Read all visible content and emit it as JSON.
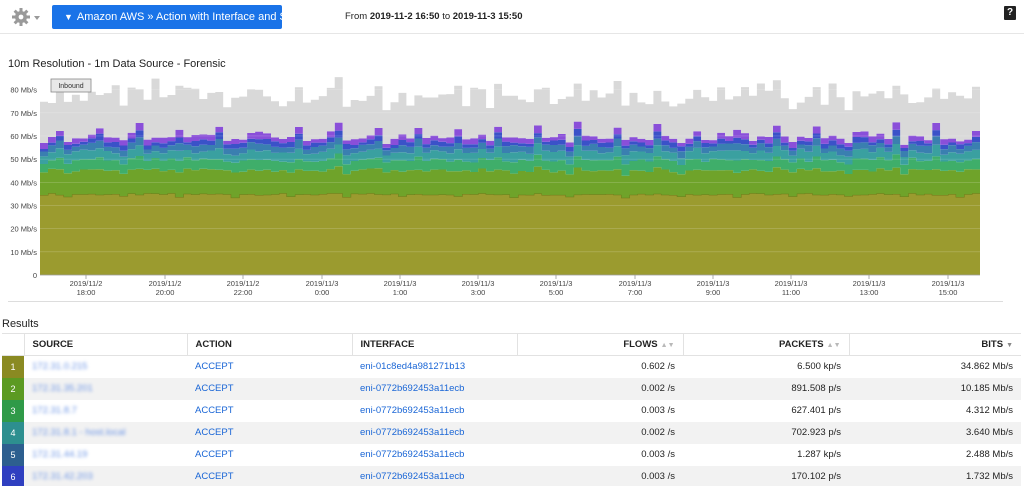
{
  "toolbar": {
    "dropdown_label": "Amazon AWS » Action with Interface and Src",
    "range_prefix": "From",
    "range_from": "2019-11-2 16:50",
    "range_sep": "to",
    "range_to": "2019-11-3 15:50",
    "help_label": "?"
  },
  "chart": {
    "title": "10m Resolution - 1m Data Source - Forensic",
    "tooltip": "Inbound",
    "y_ticks": [
      "0",
      "10 Mb/s",
      "20 Mb/s",
      "30 Mb/s",
      "40 Mb/s",
      "50 Mb/s",
      "60 Mb/s",
      "70 Mb/s",
      "80 Mb/s"
    ],
    "x_ticks": [
      [
        "2019/11/2",
        "18:00"
      ],
      [
        "2019/11/2",
        "20:00"
      ],
      [
        "2019/11/2",
        "22:00"
      ],
      [
        "2019/11/3",
        "0:00"
      ],
      [
        "2019/11/3",
        "1:00"
      ],
      [
        "2019/11/3",
        "3:00"
      ],
      [
        "2019/11/3",
        "5:00"
      ],
      [
        "2019/11/3",
        "7:00"
      ],
      [
        "2019/11/3",
        "9:00"
      ],
      [
        "2019/11/3",
        "11:00"
      ],
      [
        "2019/11/3",
        "13:00"
      ],
      [
        "2019/11/3",
        "15:00"
      ]
    ]
  },
  "chart_data": {
    "type": "area",
    "stacked": true,
    "title": "10m Resolution - 1m Data Source - Forensic",
    "ylabel": "",
    "ylim": [
      0,
      85
    ],
    "y_unit": "Mb/s",
    "legend": "none",
    "series": [
      {
        "rank": 1,
        "color": "#9b9b2f",
        "approx_mb_s": 34.9
      },
      {
        "rank": 2,
        "color": "#6fa32a",
        "approx_mb_s": 10.2
      },
      {
        "rank": 3,
        "color": "#3fae6a",
        "approx_mb_s": 4.3
      },
      {
        "rank": 4,
        "color": "#3aa0a0",
        "approx_mb_s": 3.6
      },
      {
        "rank": 5,
        "color": "#3a7fb0",
        "approx_mb_s": 2.5
      },
      {
        "rank": 6,
        "color": "#3a52c8",
        "approx_mb_s": 1.7
      },
      {
        "rank": 7,
        "color": "#8a4fd9",
        "approx_mb_s": 2.0
      },
      {
        "rank": "other",
        "color": "#d9d9d9",
        "approx_mb_s": 17.0
      }
    ]
  },
  "results": {
    "title": "Results",
    "headers": {
      "source": "SOURCE",
      "action": "ACTION",
      "interface": "INTERFACE",
      "flows": "FLOWS",
      "packets": "PACKETS",
      "bits": "BITS"
    },
    "rows": [
      {
        "rank": "1",
        "color": "#8a8a22",
        "source": "172.31.0.215",
        "action": "ACCEPT",
        "interface": "eni-01c8ed4a981271b13",
        "flows": "0.602 /s",
        "packets": "6.500 kp/s",
        "bits": "34.862 Mb/s"
      },
      {
        "rank": "2",
        "color": "#5c9a22",
        "source": "172.31.35.201",
        "action": "ACCEPT",
        "interface": "eni-0772b692453a11ecb",
        "flows": "0.002 /s",
        "packets": "891.508 p/s",
        "bits": "10.185 Mb/s"
      },
      {
        "rank": "3",
        "color": "#2f9a48",
        "source": "172.31.8.7",
        "action": "ACCEPT",
        "interface": "eni-0772b692453a11ecb",
        "flows": "0.003 /s",
        "packets": "627.401 p/s",
        "bits": "4.312 Mb/s"
      },
      {
        "rank": "4",
        "color": "#2d8f8f",
        "source": "172.31.8.1 - host.local",
        "action": "ACCEPT",
        "interface": "eni-0772b692453a11ecb",
        "flows": "0.002 /s",
        "packets": "702.923 p/s",
        "bits": "3.640 Mb/s"
      },
      {
        "rank": "5",
        "color": "#2d5f8f",
        "source": "172.31.44.19",
        "action": "ACCEPT",
        "interface": "eni-0772b692453a11ecb",
        "flows": "0.003 /s",
        "packets": "1.287 kp/s",
        "bits": "2.488 Mb/s"
      },
      {
        "rank": "6",
        "color": "#2f3fc0",
        "source": "172.31.42.203",
        "action": "ACCEPT",
        "interface": "eni-0772b692453a11ecb",
        "flows": "0.003 /s",
        "packets": "170.102 p/s",
        "bits": "1.732 Mb/s"
      }
    ]
  }
}
